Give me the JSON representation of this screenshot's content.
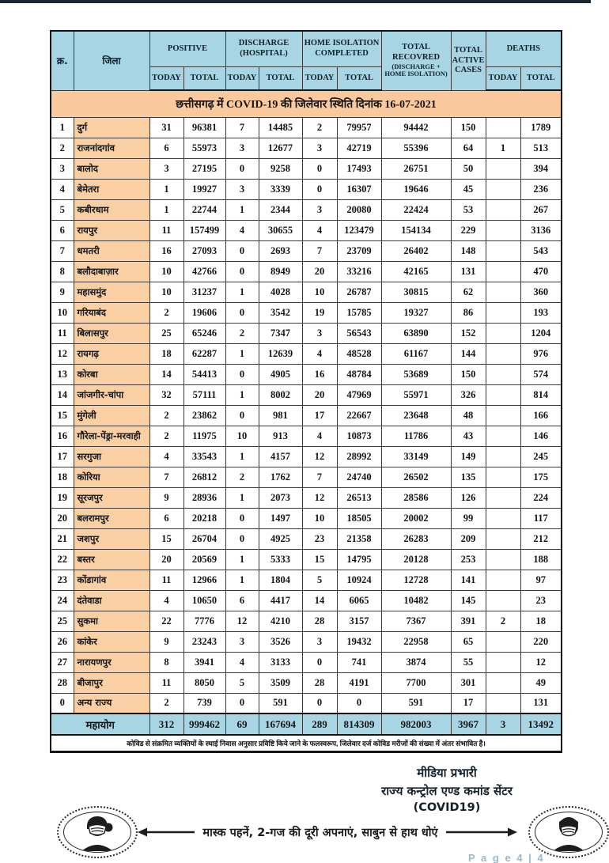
{
  "meta": {
    "doc_type": "covid-district-report",
    "colors": {
      "peach": "#FACA9E",
      "blue": "#A8D5E4",
      "border": "#141414",
      "page_label": "#9FB6C8"
    }
  },
  "table": {
    "title": "छत्तीसगढ़ में COVID-19 की जिलेवार स्थिति दिनांक 16-07-2021",
    "headers": {
      "sn": "क्र.",
      "district": "जिला",
      "positive": "POSITIVE",
      "discharge": "DISCHARGE (HOSPITAL)",
      "home_isolation": "HOME ISOLATION COMPLETED",
      "recovered_line1": "TOTAL RECOVRED",
      "recovered_line2": "(DISCHARGE + HOME ISOLATION)",
      "active": "TOTAL ACTIVE CASES",
      "deaths": "DEATHS",
      "today": "TODAY",
      "total": "TOTAL"
    },
    "column_keys": [
      "sn",
      "district",
      "pos_today",
      "pos_total",
      "dis_today",
      "dis_total",
      "hi_today",
      "hi_total",
      "recovered",
      "active",
      "death_today",
      "death_total"
    ],
    "rows": [
      [
        "1",
        "दुर्ग",
        "31",
        "96381",
        "7",
        "14485",
        "2",
        "79957",
        "94442",
        "150",
        "",
        "1789"
      ],
      [
        "2",
        "राजनांदगांव",
        "6",
        "55973",
        "3",
        "12677",
        "3",
        "42719",
        "55396",
        "64",
        "1",
        "513"
      ],
      [
        "3",
        "बालोद",
        "3",
        "27195",
        "0",
        "9258",
        "0",
        "17493",
        "26751",
        "50",
        "",
        "394"
      ],
      [
        "4",
        "बेमेतरा",
        "1",
        "19927",
        "3",
        "3339",
        "0",
        "16307",
        "19646",
        "45",
        "",
        "236"
      ],
      [
        "5",
        "कबीरधाम",
        "1",
        "22744",
        "1",
        "2344",
        "3",
        "20080",
        "22424",
        "53",
        "",
        "267"
      ],
      [
        "6",
        "रायपुर",
        "11",
        "157499",
        "4",
        "30655",
        "4",
        "123479",
        "154134",
        "229",
        "",
        "3136"
      ],
      [
        "7",
        "धमतरी",
        "16",
        "27093",
        "0",
        "2693",
        "7",
        "23709",
        "26402",
        "148",
        "",
        "543"
      ],
      [
        "8",
        "बलौदाबाज़ार",
        "10",
        "42766",
        "0",
        "8949",
        "20",
        "33216",
        "42165",
        "131",
        "",
        "470"
      ],
      [
        "9",
        "महासमुंद",
        "10",
        "31237",
        "1",
        "4028",
        "10",
        "26787",
        "30815",
        "62",
        "",
        "360"
      ],
      [
        "10",
        "गरियाबंद",
        "2",
        "19606",
        "0",
        "3542",
        "19",
        "15785",
        "19327",
        "86",
        "",
        "193"
      ],
      [
        "11",
        "बिलासपुर",
        "25",
        "65246",
        "2",
        "7347",
        "3",
        "56543",
        "63890",
        "152",
        "",
        "1204"
      ],
      [
        "12",
        "रायगढ़",
        "18",
        "62287",
        "1",
        "12639",
        "4",
        "48528",
        "61167",
        "144",
        "",
        "976"
      ],
      [
        "13",
        "कोरबा",
        "14",
        "54413",
        "0",
        "4905",
        "16",
        "48784",
        "53689",
        "150",
        "",
        "574"
      ],
      [
        "14",
        "जांजगीर-चांपा",
        "32",
        "57111",
        "1",
        "8002",
        "20",
        "47969",
        "55971",
        "326",
        "",
        "814"
      ],
      [
        "15",
        "मुंगेली",
        "2",
        "23862",
        "0",
        "981",
        "17",
        "22667",
        "23648",
        "48",
        "",
        "166"
      ],
      [
        "16",
        "गौरेला-पेंड्रा-मरवाही",
        "2",
        "11975",
        "10",
        "913",
        "4",
        "10873",
        "11786",
        "43",
        "",
        "146"
      ],
      [
        "17",
        "सरगुजा",
        "4",
        "33543",
        "1",
        "4157",
        "12",
        "28992",
        "33149",
        "149",
        "",
        "245"
      ],
      [
        "18",
        "कोरिया",
        "7",
        "26812",
        "2",
        "1762",
        "7",
        "24740",
        "26502",
        "135",
        "",
        "175"
      ],
      [
        "19",
        "सूरजपुर",
        "9",
        "28936",
        "1",
        "2073",
        "12",
        "26513",
        "28586",
        "126",
        "",
        "224"
      ],
      [
        "20",
        "बलरामपुर",
        "6",
        "20218",
        "0",
        "1497",
        "10",
        "18505",
        "20002",
        "99",
        "",
        "117"
      ],
      [
        "21",
        "जशपुर",
        "15",
        "26704",
        "0",
        "4925",
        "23",
        "21358",
        "26283",
        "209",
        "",
        "212"
      ],
      [
        "22",
        "बस्तर",
        "20",
        "20569",
        "1",
        "5333",
        "15",
        "14795",
        "20128",
        "253",
        "",
        "188"
      ],
      [
        "23",
        "कोंडागांव",
        "11",
        "12966",
        "1",
        "1804",
        "5",
        "10924",
        "12728",
        "141",
        "",
        "97"
      ],
      [
        "24",
        "दंतेवाडा",
        "4",
        "10650",
        "6",
        "4417",
        "14",
        "6065",
        "10482",
        "145",
        "",
        "23"
      ],
      [
        "25",
        "सुकमा",
        "22",
        "7776",
        "12",
        "4210",
        "28",
        "3157",
        "7367",
        "391",
        "2",
        "18"
      ],
      [
        "26",
        "कांकेर",
        "9",
        "23243",
        "3",
        "3526",
        "3",
        "19432",
        "22958",
        "65",
        "",
        "220"
      ],
      [
        "27",
        "नारायणपुर",
        "8",
        "3941",
        "4",
        "3133",
        "0",
        "741",
        "3874",
        "55",
        "",
        "12"
      ],
      [
        "28",
        "बीजापुर",
        "11",
        "8050",
        "5",
        "3509",
        "28",
        "4191",
        "7700",
        "301",
        "",
        "49"
      ],
      [
        "0",
        "अन्य राज्य",
        "2",
        "739",
        "0",
        "591",
        "0",
        "0",
        "591",
        "17",
        "",
        "131"
      ]
    ],
    "total_row": {
      "label": "महायोग",
      "pos_today": "312",
      "pos_total": "999462",
      "dis_today": "69",
      "dis_total": "167694",
      "hi_today": "289",
      "hi_total": "814309",
      "recovered": "982003",
      "active": "3967",
      "death_today": "3",
      "death_total": "13492"
    },
    "footnote": "कोविड से संक्रमित व्यक्तियों के स्थाई निवास अनुसार प्रविष्टि किये जाने के फलस्वरूप, जिलेवार दर्ज कोविड मरीजों की संख्या में अंतर संभावित है।"
  },
  "footer": {
    "signature_line1": "मीडिया प्रभारी",
    "signature_line2": "राज्य कन्ट्रोल एण्ड कमांड सेंटर",
    "signature_line3": "(COVID19)",
    "advisory": "मास्क पहनें, 2-गज की दूरी अपनाएं, साबुन से हाथ धोएं",
    "page_label": "P a g e 4 | 4",
    "icons": {
      "left": "masked-woman-icon",
      "right": "masked-man-icon"
    }
  }
}
